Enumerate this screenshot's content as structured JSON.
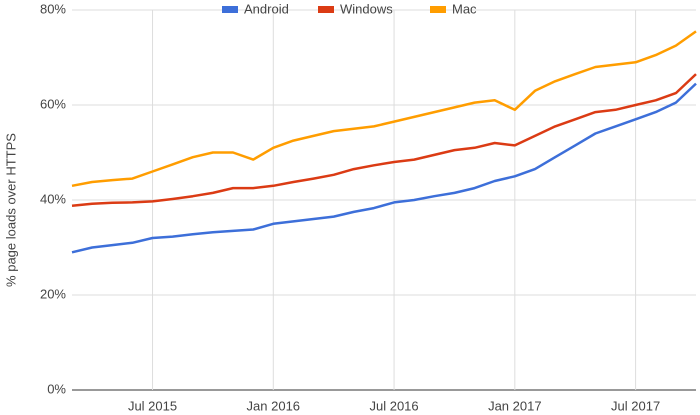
{
  "chart_data": {
    "type": "line",
    "y_label": "% page loads over HTTPS",
    "x": [
      "2015-03",
      "2015-04",
      "2015-05",
      "2015-06",
      "2015-07",
      "2015-08",
      "2015-09",
      "2015-10",
      "2015-11",
      "2015-12",
      "2016-01",
      "2016-02",
      "2016-03",
      "2016-04",
      "2016-05",
      "2016-06",
      "2016-07",
      "2016-08",
      "2016-09",
      "2016-10",
      "2016-11",
      "2016-12",
      "2017-01",
      "2017-02",
      "2017-03",
      "2017-04",
      "2017-05",
      "2017-06",
      "2017-07",
      "2017-08",
      "2017-09",
      "2017-10"
    ],
    "series": [
      {
        "name": "Android",
        "color": "#3d6fd9",
        "values": [
          29,
          30,
          30.5,
          31,
          32,
          32.3,
          32.8,
          33.2,
          33.5,
          33.8,
          35,
          35.5,
          36,
          36.5,
          37.5,
          38.3,
          39.5,
          40,
          40.8,
          41.5,
          42.5,
          44,
          45,
          46.5,
          49,
          51.5,
          54,
          55.5,
          57,
          58.5,
          60.5,
          64.5
        ]
      },
      {
        "name": "Windows",
        "color": "#db3b14",
        "values": [
          38.8,
          39.2,
          39.4,
          39.5,
          39.7,
          40.2,
          40.8,
          41.5,
          42.5,
          42.5,
          43,
          43.8,
          44.5,
          45.3,
          46.5,
          47.3,
          48,
          48.5,
          49.5,
          50.5,
          51,
          52,
          51.5,
          53.5,
          55.5,
          57,
          58.5,
          59,
          60,
          61,
          62.5,
          66.5
        ]
      },
      {
        "name": "Mac",
        "color": "#ff9d00",
        "values": [
          43,
          43.8,
          44.2,
          44.5,
          46,
          47.5,
          49,
          50,
          50,
          48.5,
          51,
          52.5,
          53.5,
          54.5,
          55,
          55.5,
          56.5,
          57.5,
          58.5,
          59.5,
          60.5,
          61,
          59,
          63,
          65,
          66.5,
          68,
          68.5,
          69,
          70.5,
          72.5,
          75.5
        ]
      }
    ],
    "xlim": [
      "2015-03",
      "2017-10"
    ],
    "xticks": [
      {
        "value": "2015-07",
        "label": "Jul 2015"
      },
      {
        "value": "2016-01",
        "label": "Jan 2016"
      },
      {
        "value": "2016-07",
        "label": "Jul 2016"
      },
      {
        "value": "2017-01",
        "label": "Jan 2017"
      },
      {
        "value": "2017-07",
        "label": "Jul 2017"
      }
    ],
    "ylim": [
      0,
      80
    ],
    "yticks": [
      {
        "value": 0,
        "label": "0%"
      },
      {
        "value": 20,
        "label": "20%"
      },
      {
        "value": 40,
        "label": "40%"
      },
      {
        "value": 60,
        "label": "60%"
      },
      {
        "value": 80,
        "label": "80%"
      }
    ],
    "grid": true,
    "legend": "top"
  }
}
